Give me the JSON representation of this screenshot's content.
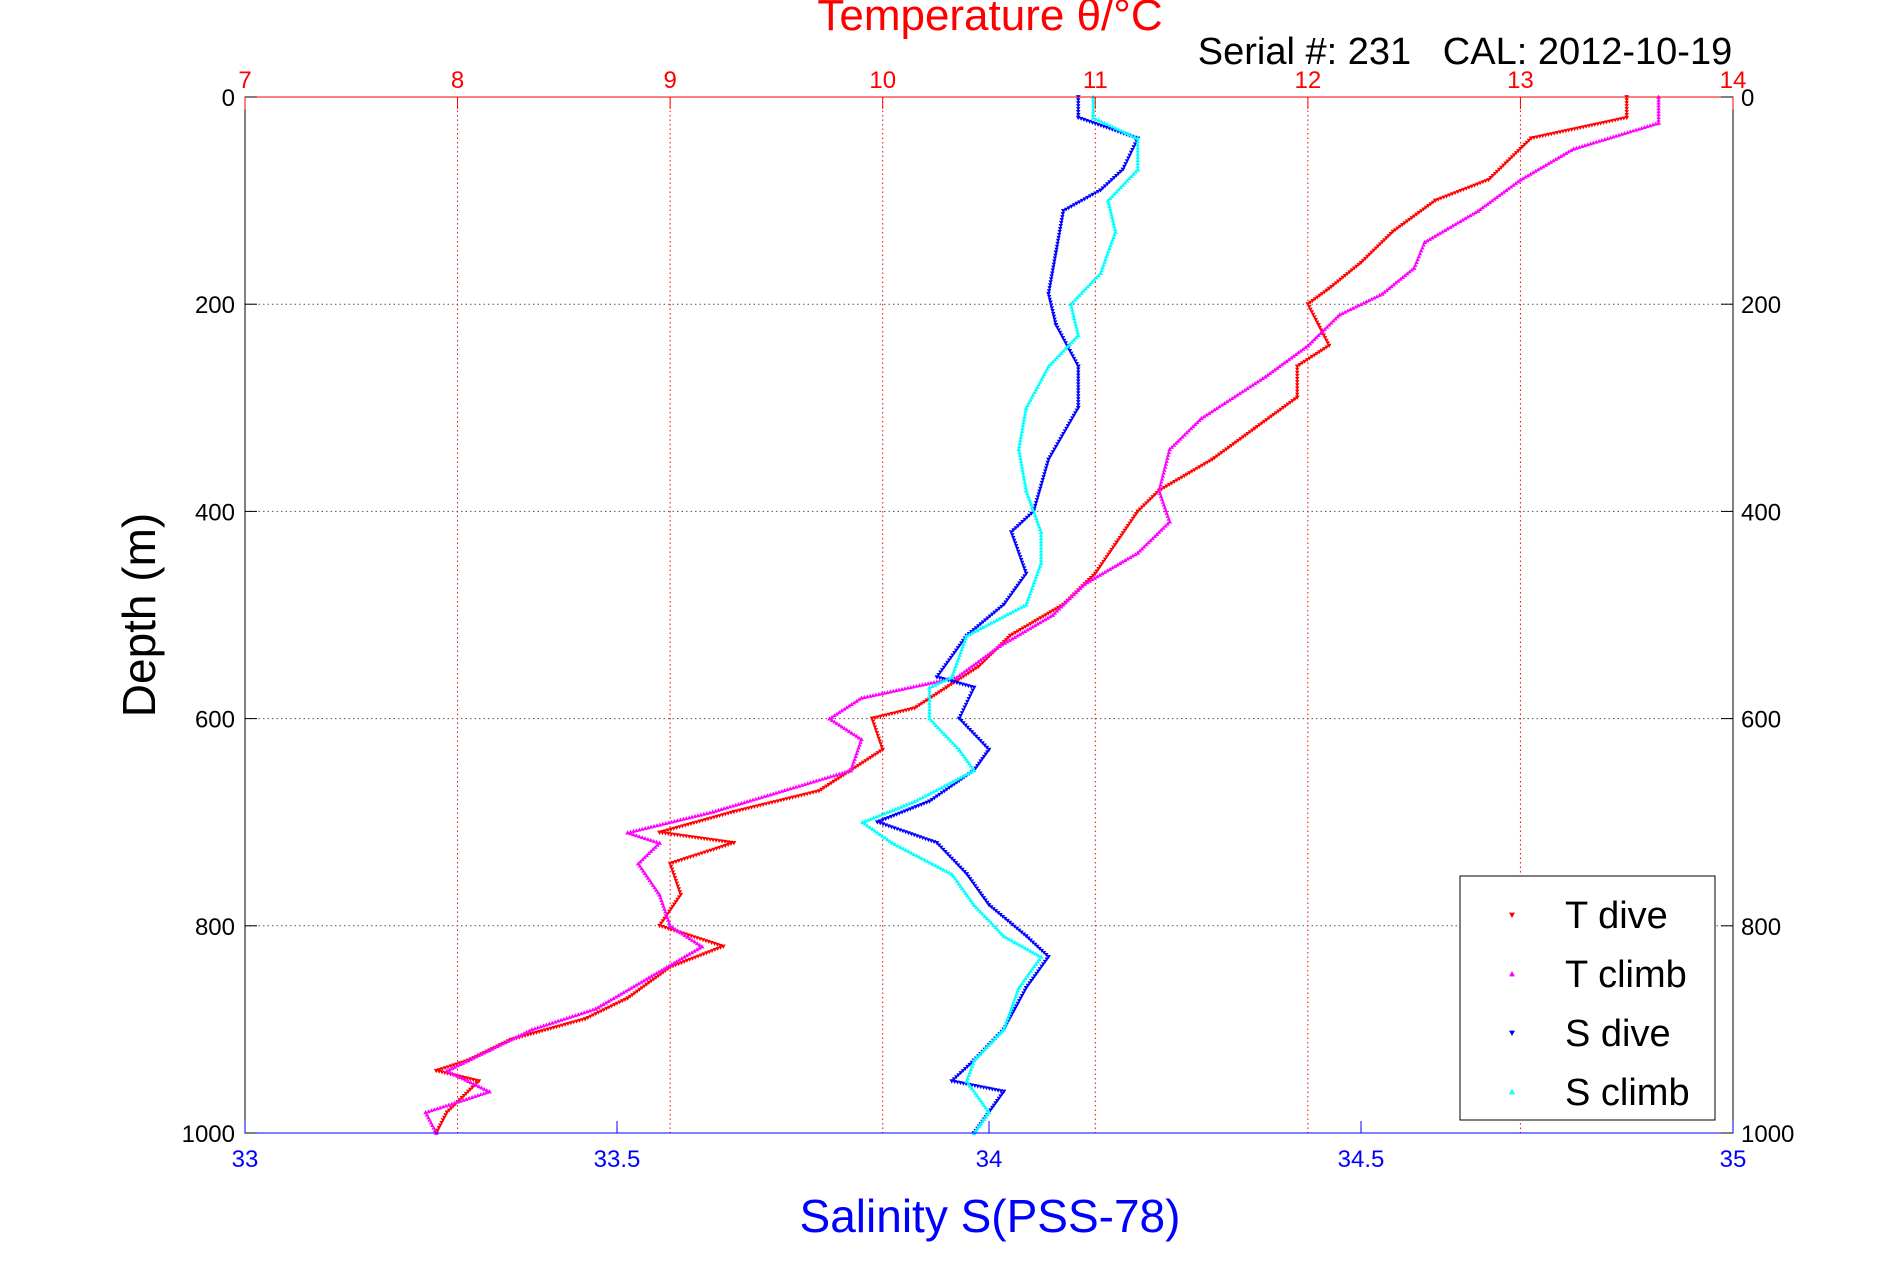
{
  "chart_data": {
    "type": "scatter",
    "title": "Temperature θ/°C",
    "subtitle": "Serial #: 231   CAL: 2012-10-19",
    "xlabel": "Salinity S(PSS-78)",
    "x2label": "Temperature θ/°C",
    "ylabel": "Depth (m)",
    "x_salinity_range": [
      33,
      35
    ],
    "x_temperature_range": [
      7,
      14
    ],
    "y_depth_range": [
      0,
      1000
    ],
    "y_reversed": true,
    "grid": true,
    "legend_position": "bottom-right",
    "salinity_ticks": [
      "33",
      "33.5",
      "34",
      "34.5",
      "35"
    ],
    "temperature_ticks": [
      "7",
      "8",
      "9",
      "10",
      "11",
      "12",
      "13",
      "14"
    ],
    "depth_ticks": [
      "0",
      "200",
      "400",
      "600",
      "800",
      "1000"
    ],
    "series": [
      {
        "name": "T dive",
        "axis": "temperature",
        "color": "#ff0000",
        "marker": "triangle-down",
        "points": [
          [
            13.5,
            0
          ],
          [
            13.5,
            20
          ],
          [
            13.05,
            40
          ],
          [
            12.85,
            80
          ],
          [
            12.6,
            100
          ],
          [
            12.4,
            130
          ],
          [
            12.25,
            160
          ],
          [
            12.1,
            185
          ],
          [
            12.0,
            200
          ],
          [
            12.05,
            220
          ],
          [
            12.1,
            240
          ],
          [
            11.95,
            260
          ],
          [
            11.95,
            290
          ],
          [
            11.75,
            320
          ],
          [
            11.55,
            350
          ],
          [
            11.3,
            380
          ],
          [
            11.2,
            400
          ],
          [
            11.1,
            430
          ],
          [
            11.0,
            460
          ],
          [
            10.85,
            490
          ],
          [
            10.6,
            520
          ],
          [
            10.45,
            550
          ],
          [
            10.3,
            570
          ],
          [
            10.15,
            590
          ],
          [
            9.95,
            600
          ],
          [
            10.0,
            630
          ],
          [
            9.85,
            650
          ],
          [
            9.7,
            670
          ],
          [
            9.3,
            690
          ],
          [
            8.95,
            710
          ],
          [
            9.3,
            720
          ],
          [
            9.0,
            740
          ],
          [
            9.05,
            770
          ],
          [
            8.95,
            800
          ],
          [
            9.25,
            820
          ],
          [
            9.0,
            840
          ],
          [
            8.8,
            870
          ],
          [
            8.6,
            890
          ],
          [
            8.25,
            910
          ],
          [
            8.05,
            930
          ],
          [
            7.9,
            940
          ],
          [
            8.1,
            950
          ],
          [
            7.95,
            980
          ],
          [
            7.9,
            1000
          ]
        ]
      },
      {
        "name": "T climb",
        "axis": "temperature",
        "color": "#ff00ff",
        "marker": "triangle-up",
        "points": [
          [
            13.65,
            0
          ],
          [
            13.65,
            25
          ],
          [
            13.25,
            50
          ],
          [
            13.0,
            80
          ],
          [
            12.8,
            110
          ],
          [
            12.55,
            140
          ],
          [
            12.5,
            165
          ],
          [
            12.35,
            190
          ],
          [
            12.15,
            210
          ],
          [
            12.0,
            240
          ],
          [
            11.8,
            270
          ],
          [
            11.5,
            310
          ],
          [
            11.35,
            340
          ],
          [
            11.3,
            380
          ],
          [
            11.35,
            410
          ],
          [
            11.2,
            440
          ],
          [
            10.95,
            470
          ],
          [
            10.8,
            500
          ],
          [
            10.55,
            530
          ],
          [
            10.35,
            560
          ],
          [
            9.9,
            580
          ],
          [
            9.75,
            600
          ],
          [
            9.9,
            620
          ],
          [
            9.85,
            650
          ],
          [
            9.2,
            690
          ],
          [
            8.8,
            710
          ],
          [
            8.95,
            720
          ],
          [
            8.85,
            740
          ],
          [
            8.95,
            770
          ],
          [
            9.0,
            800
          ],
          [
            9.15,
            820
          ],
          [
            8.9,
            850
          ],
          [
            8.65,
            880
          ],
          [
            8.35,
            900
          ],
          [
            8.15,
            920
          ],
          [
            7.95,
            940
          ],
          [
            8.15,
            960
          ],
          [
            7.85,
            980
          ],
          [
            7.9,
            1000
          ]
        ]
      },
      {
        "name": "S dive",
        "axis": "salinity",
        "color": "#0000ff",
        "marker": "triangle-down",
        "points": [
          [
            34.12,
            0
          ],
          [
            34.12,
            20
          ],
          [
            34.2,
            40
          ],
          [
            34.18,
            70
          ],
          [
            34.15,
            90
          ],
          [
            34.1,
            110
          ],
          [
            34.09,
            150
          ],
          [
            34.08,
            190
          ],
          [
            34.09,
            220
          ],
          [
            34.12,
            260
          ],
          [
            34.12,
            300
          ],
          [
            34.08,
            350
          ],
          [
            34.06,
            400
          ],
          [
            34.03,
            420
          ],
          [
            34.05,
            460
          ],
          [
            34.02,
            490
          ],
          [
            33.97,
            520
          ],
          [
            33.93,
            560
          ],
          [
            33.98,
            570
          ],
          [
            33.96,
            600
          ],
          [
            34.0,
            630
          ],
          [
            33.98,
            650
          ],
          [
            33.92,
            680
          ],
          [
            33.85,
            700
          ],
          [
            33.93,
            720
          ],
          [
            33.97,
            750
          ],
          [
            34.0,
            780
          ],
          [
            34.05,
            810
          ],
          [
            34.08,
            830
          ],
          [
            34.05,
            860
          ],
          [
            34.02,
            900
          ],
          [
            33.98,
            930
          ],
          [
            33.95,
            950
          ],
          [
            34.02,
            960
          ],
          [
            34.0,
            980
          ],
          [
            33.98,
            1000
          ]
        ]
      },
      {
        "name": "S climb",
        "axis": "salinity",
        "color": "#00ffff",
        "marker": "triangle-up",
        "points": [
          [
            34.14,
            0
          ],
          [
            34.14,
            20
          ],
          [
            34.2,
            40
          ],
          [
            34.2,
            70
          ],
          [
            34.16,
            100
          ],
          [
            34.17,
            130
          ],
          [
            34.15,
            170
          ],
          [
            34.11,
            200
          ],
          [
            34.12,
            230
          ],
          [
            34.08,
            260
          ],
          [
            34.05,
            300
          ],
          [
            34.04,
            340
          ],
          [
            34.05,
            380
          ],
          [
            34.07,
            420
          ],
          [
            34.07,
            450
          ],
          [
            34.05,
            490
          ],
          [
            33.97,
            520
          ],
          [
            33.95,
            560
          ],
          [
            33.92,
            570
          ],
          [
            33.92,
            600
          ],
          [
            33.96,
            630
          ],
          [
            33.98,
            650
          ],
          [
            33.9,
            680
          ],
          [
            33.83,
            700
          ],
          [
            33.87,
            720
          ],
          [
            33.95,
            750
          ],
          [
            33.98,
            780
          ],
          [
            34.02,
            810
          ],
          [
            34.07,
            830
          ],
          [
            34.04,
            860
          ],
          [
            34.02,
            900
          ],
          [
            33.98,
            930
          ],
          [
            33.97,
            950
          ],
          [
            34.0,
            980
          ],
          [
            33.98,
            1000
          ]
        ]
      }
    ]
  }
}
